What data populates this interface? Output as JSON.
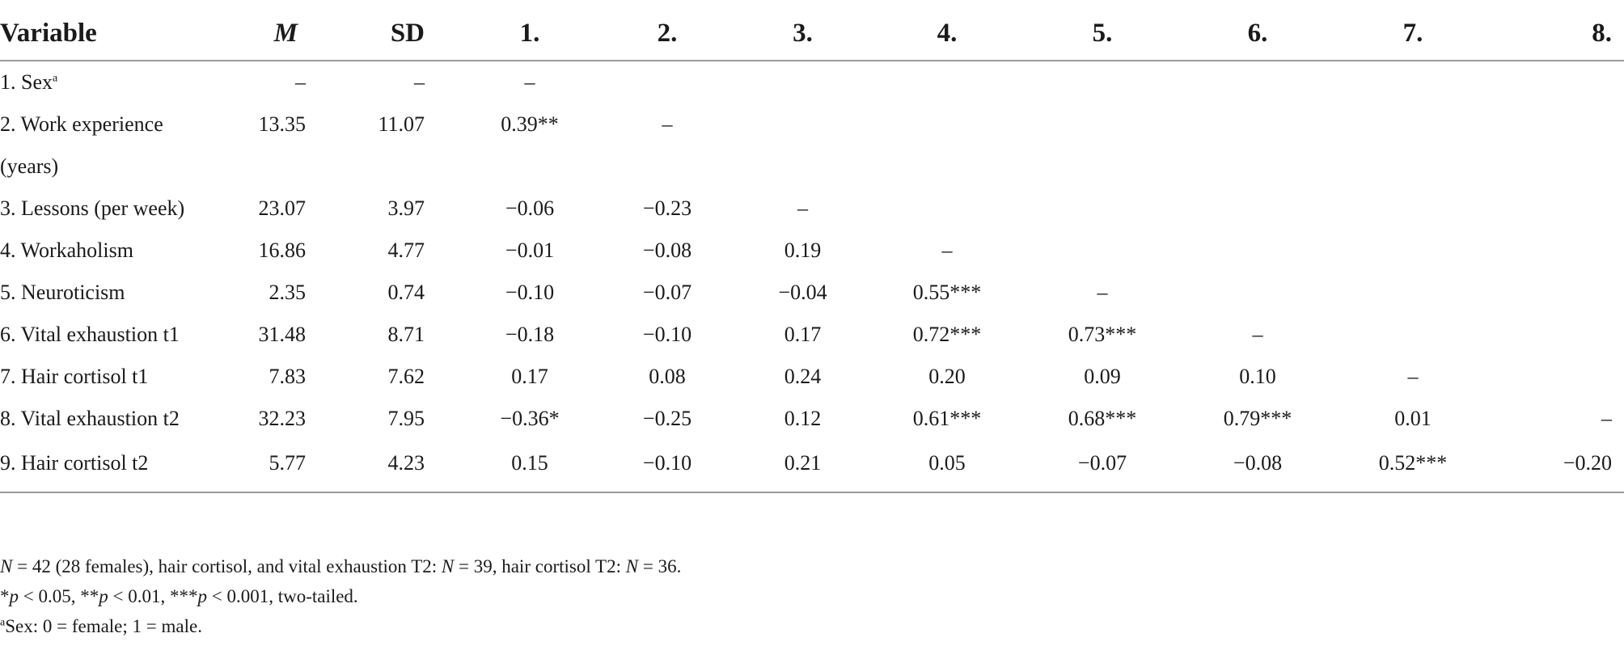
{
  "table": {
    "headers": {
      "variable": "Variable",
      "m": "M",
      "sd": "SD",
      "c1": "1.",
      "c2": "2.",
      "c3": "3.",
      "c4": "4.",
      "c5": "5.",
      "c6": "6.",
      "c7": "7.",
      "c8": "8."
    },
    "rows": [
      {
        "variable": "1. Sex",
        "variable_sup": "a",
        "m": "–",
        "sd": "–",
        "c1": "–",
        "c2": "",
        "c3": "",
        "c4": "",
        "c5": "",
        "c6": "",
        "c7": "",
        "c8": ""
      },
      {
        "variable": "2. Work experience",
        "variable_cont": "(years)",
        "m": "13.35",
        "sd": "11.07",
        "c1": "0.39**",
        "c2": "–",
        "c3": "",
        "c4": "",
        "c5": "",
        "c6": "",
        "c7": "",
        "c8": ""
      },
      {
        "variable": "3. Lessons (per week)",
        "m": "23.07",
        "sd": "3.97",
        "c1": "−0.06",
        "c2": "−0.23",
        "c3": "–",
        "c4": "",
        "c5": "",
        "c6": "",
        "c7": "",
        "c8": ""
      },
      {
        "variable": "4. Workaholism",
        "m": "16.86",
        "sd": "4.77",
        "c1": "−0.01",
        "c2": "−0.08",
        "c3": "0.19",
        "c4": "–",
        "c5": "",
        "c6": "",
        "c7": "",
        "c8": ""
      },
      {
        "variable": "5. Neuroticism",
        "m": "2.35",
        "sd": "0.74",
        "c1": "−0.10",
        "c2": "−0.07",
        "c3": "−0.04",
        "c4": "0.55***",
        "c5": "–",
        "c6": "",
        "c7": "",
        "c8": ""
      },
      {
        "variable": "6. Vital exhaustion t1",
        "m": "31.48",
        "sd": "8.71",
        "c1": "−0.18",
        "c2": "−0.10",
        "c3": "0.17",
        "c4": "0.72***",
        "c5": "0.73***",
        "c6": "–",
        "c7": "",
        "c8": ""
      },
      {
        "variable": "7. Hair cortisol t1",
        "m": "7.83",
        "sd": "7.62",
        "c1": "0.17",
        "c2": "0.08",
        "c3": "0.24",
        "c4": "0.20",
        "c5": "0.09",
        "c6": "0.10",
        "c7": "–",
        "c8": ""
      },
      {
        "variable": "8. Vital exhaustion t2",
        "m": "32.23",
        "sd": "7.95",
        "c1": "−0.36*",
        "c2": "−0.25",
        "c3": "0.12",
        "c4": "0.61***",
        "c5": "0.68***",
        "c6": "0.79***",
        "c7": "0.01",
        "c8": "–"
      },
      {
        "variable": "9. Hair cortisol t2",
        "m": "5.77",
        "sd": "4.23",
        "c1": "0.15",
        "c2": "−0.10",
        "c3": "0.21",
        "c4": "0.05",
        "c5": "−0.07",
        "c6": "−0.08",
        "c7": "0.52***",
        "c8": "−0.20"
      }
    ]
  },
  "notes": {
    "line1": {
      "n1": "N",
      "t1": " = 42 (28 females), hair cortisol, and vital exhaustion T2: ",
      "n2": "N",
      "t2": " = 39, hair cortisol T2: ",
      "n3": "N",
      "t3": " = 36."
    },
    "line2": {
      "s1": "*",
      "p1": "p",
      "t1": " < 0.05, **",
      "p2": "p",
      "t2": " < 0.01, ***",
      "p3": "p",
      "t3": " < 0.001, two-tailed."
    },
    "line3": {
      "sup": "a",
      "text": "Sex: 0 = female; 1 = male."
    }
  }
}
